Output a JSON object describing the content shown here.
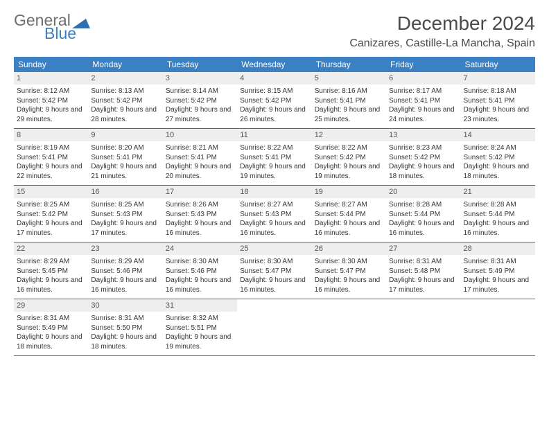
{
  "logo": {
    "general": "General",
    "blue": "Blue"
  },
  "title": "December 2024",
  "location": "Canizares, Castille-La Mancha, Spain",
  "colors": {
    "header_bg": "#3a80c3",
    "header_text": "#ffffff",
    "daynum_bg": "#eeeeee",
    "week_border": "#3a6d9a",
    "body_text": "#333333",
    "logo_gray": "#6e6e6e",
    "logo_blue": "#3a80c3"
  },
  "typography": {
    "title_fontsize": 28,
    "location_fontsize": 16,
    "weekday_fontsize": 12,
    "daynum_fontsize": 11,
    "dayinfo_fontsize": 10
  },
  "weekdays": [
    "Sunday",
    "Monday",
    "Tuesday",
    "Wednesday",
    "Thursday",
    "Friday",
    "Saturday"
  ],
  "weeks": [
    [
      {
        "num": "1",
        "sunrise": "Sunrise: 8:12 AM",
        "sunset": "Sunset: 5:42 PM",
        "daylight": "Daylight: 9 hours and 29 minutes."
      },
      {
        "num": "2",
        "sunrise": "Sunrise: 8:13 AM",
        "sunset": "Sunset: 5:42 PM",
        "daylight": "Daylight: 9 hours and 28 minutes."
      },
      {
        "num": "3",
        "sunrise": "Sunrise: 8:14 AM",
        "sunset": "Sunset: 5:42 PM",
        "daylight": "Daylight: 9 hours and 27 minutes."
      },
      {
        "num": "4",
        "sunrise": "Sunrise: 8:15 AM",
        "sunset": "Sunset: 5:42 PM",
        "daylight": "Daylight: 9 hours and 26 minutes."
      },
      {
        "num": "5",
        "sunrise": "Sunrise: 8:16 AM",
        "sunset": "Sunset: 5:41 PM",
        "daylight": "Daylight: 9 hours and 25 minutes."
      },
      {
        "num": "6",
        "sunrise": "Sunrise: 8:17 AM",
        "sunset": "Sunset: 5:41 PM",
        "daylight": "Daylight: 9 hours and 24 minutes."
      },
      {
        "num": "7",
        "sunrise": "Sunrise: 8:18 AM",
        "sunset": "Sunset: 5:41 PM",
        "daylight": "Daylight: 9 hours and 23 minutes."
      }
    ],
    [
      {
        "num": "8",
        "sunrise": "Sunrise: 8:19 AM",
        "sunset": "Sunset: 5:41 PM",
        "daylight": "Daylight: 9 hours and 22 minutes."
      },
      {
        "num": "9",
        "sunrise": "Sunrise: 8:20 AM",
        "sunset": "Sunset: 5:41 PM",
        "daylight": "Daylight: 9 hours and 21 minutes."
      },
      {
        "num": "10",
        "sunrise": "Sunrise: 8:21 AM",
        "sunset": "Sunset: 5:41 PM",
        "daylight": "Daylight: 9 hours and 20 minutes."
      },
      {
        "num": "11",
        "sunrise": "Sunrise: 8:22 AM",
        "sunset": "Sunset: 5:41 PM",
        "daylight": "Daylight: 9 hours and 19 minutes."
      },
      {
        "num": "12",
        "sunrise": "Sunrise: 8:22 AM",
        "sunset": "Sunset: 5:42 PM",
        "daylight": "Daylight: 9 hours and 19 minutes."
      },
      {
        "num": "13",
        "sunrise": "Sunrise: 8:23 AM",
        "sunset": "Sunset: 5:42 PM",
        "daylight": "Daylight: 9 hours and 18 minutes."
      },
      {
        "num": "14",
        "sunrise": "Sunrise: 8:24 AM",
        "sunset": "Sunset: 5:42 PM",
        "daylight": "Daylight: 9 hours and 18 minutes."
      }
    ],
    [
      {
        "num": "15",
        "sunrise": "Sunrise: 8:25 AM",
        "sunset": "Sunset: 5:42 PM",
        "daylight": "Daylight: 9 hours and 17 minutes."
      },
      {
        "num": "16",
        "sunrise": "Sunrise: 8:25 AM",
        "sunset": "Sunset: 5:43 PM",
        "daylight": "Daylight: 9 hours and 17 minutes."
      },
      {
        "num": "17",
        "sunrise": "Sunrise: 8:26 AM",
        "sunset": "Sunset: 5:43 PM",
        "daylight": "Daylight: 9 hours and 16 minutes."
      },
      {
        "num": "18",
        "sunrise": "Sunrise: 8:27 AM",
        "sunset": "Sunset: 5:43 PM",
        "daylight": "Daylight: 9 hours and 16 minutes."
      },
      {
        "num": "19",
        "sunrise": "Sunrise: 8:27 AM",
        "sunset": "Sunset: 5:44 PM",
        "daylight": "Daylight: 9 hours and 16 minutes."
      },
      {
        "num": "20",
        "sunrise": "Sunrise: 8:28 AM",
        "sunset": "Sunset: 5:44 PM",
        "daylight": "Daylight: 9 hours and 16 minutes."
      },
      {
        "num": "21",
        "sunrise": "Sunrise: 8:28 AM",
        "sunset": "Sunset: 5:44 PM",
        "daylight": "Daylight: 9 hours and 16 minutes."
      }
    ],
    [
      {
        "num": "22",
        "sunrise": "Sunrise: 8:29 AM",
        "sunset": "Sunset: 5:45 PM",
        "daylight": "Daylight: 9 hours and 16 minutes."
      },
      {
        "num": "23",
        "sunrise": "Sunrise: 8:29 AM",
        "sunset": "Sunset: 5:46 PM",
        "daylight": "Daylight: 9 hours and 16 minutes."
      },
      {
        "num": "24",
        "sunrise": "Sunrise: 8:30 AM",
        "sunset": "Sunset: 5:46 PM",
        "daylight": "Daylight: 9 hours and 16 minutes."
      },
      {
        "num": "25",
        "sunrise": "Sunrise: 8:30 AM",
        "sunset": "Sunset: 5:47 PM",
        "daylight": "Daylight: 9 hours and 16 minutes."
      },
      {
        "num": "26",
        "sunrise": "Sunrise: 8:30 AM",
        "sunset": "Sunset: 5:47 PM",
        "daylight": "Daylight: 9 hours and 16 minutes."
      },
      {
        "num": "27",
        "sunrise": "Sunrise: 8:31 AM",
        "sunset": "Sunset: 5:48 PM",
        "daylight": "Daylight: 9 hours and 17 minutes."
      },
      {
        "num": "28",
        "sunrise": "Sunrise: 8:31 AM",
        "sunset": "Sunset: 5:49 PM",
        "daylight": "Daylight: 9 hours and 17 minutes."
      }
    ],
    [
      {
        "num": "29",
        "sunrise": "Sunrise: 8:31 AM",
        "sunset": "Sunset: 5:49 PM",
        "daylight": "Daylight: 9 hours and 18 minutes."
      },
      {
        "num": "30",
        "sunrise": "Sunrise: 8:31 AM",
        "sunset": "Sunset: 5:50 PM",
        "daylight": "Daylight: 9 hours and 18 minutes."
      },
      {
        "num": "31",
        "sunrise": "Sunrise: 8:32 AM",
        "sunset": "Sunset: 5:51 PM",
        "daylight": "Daylight: 9 hours and 19 minutes."
      },
      {
        "empty": true
      },
      {
        "empty": true
      },
      {
        "empty": true
      },
      {
        "empty": true
      }
    ]
  ]
}
